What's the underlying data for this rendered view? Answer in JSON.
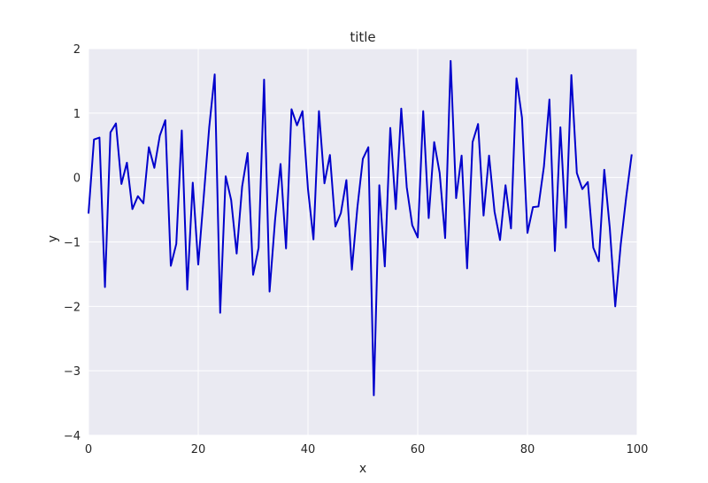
{
  "chart_data": {
    "type": "line",
    "title": "title",
    "xlabel": "x",
    "ylabel": "y",
    "xlim": [
      0,
      100
    ],
    "ylim": [
      -4,
      2
    ],
    "xticks": [
      0,
      20,
      40,
      60,
      80,
      100
    ],
    "yticks": [
      -4,
      -3,
      -2,
      -1,
      0,
      1,
      2
    ],
    "xtick_labels": [
      "0",
      "20",
      "40",
      "60",
      "80",
      "100"
    ],
    "ytick_labels": [
      "−4",
      "−3",
      "−2",
      "−1",
      "0",
      "1",
      "2"
    ],
    "grid": true,
    "style": "seaborn-darkgrid",
    "background_color": "#EAEAF2",
    "grid_color": "#FFFFFF",
    "series": [
      {
        "color": "#0000CC",
        "x": [
          0,
          1,
          2,
          3,
          4,
          5,
          6,
          7,
          8,
          9,
          10,
          11,
          12,
          13,
          14,
          15,
          16,
          17,
          18,
          19,
          20,
          21,
          22,
          23,
          24,
          25,
          26,
          27,
          28,
          29,
          30,
          31,
          32,
          33,
          34,
          35,
          36,
          37,
          38,
          39,
          40,
          41,
          42,
          43,
          44,
          45,
          46,
          47,
          48,
          49,
          50,
          51,
          52,
          53,
          54,
          55,
          56,
          57,
          58,
          59,
          60,
          61,
          62,
          63,
          64,
          65,
          66,
          67,
          68,
          69,
          70,
          71,
          72,
          73,
          74,
          75,
          76,
          77,
          78,
          79,
          80,
          81,
          82,
          83,
          84,
          85,
          86,
          87,
          88,
          89,
          90,
          91,
          92,
          93,
          94,
          95,
          96,
          97,
          98,
          99
        ],
        "y": [
          -0.56,
          0.59,
          0.62,
          -1.7,
          0.7,
          0.84,
          -0.1,
          0.23,
          -0.49,
          -0.29,
          -0.4,
          0.47,
          0.15,
          0.65,
          0.89,
          -1.37,
          -1.03,
          0.73,
          -1.74,
          -0.08,
          -1.35,
          -0.3,
          0.78,
          1.6,
          -2.1,
          0.02,
          -0.35,
          -1.18,
          -0.14,
          0.38,
          -1.51,
          -1.09,
          1.52,
          -1.77,
          -0.66,
          0.21,
          -1.1,
          1.06,
          0.81,
          1.03,
          -0.18,
          -0.96,
          1.03,
          -0.09,
          0.35,
          -0.76,
          -0.55,
          -0.04,
          -1.43,
          -0.47,
          0.29,
          0.47,
          -3.38,
          -0.12,
          -1.38,
          0.77,
          -0.49,
          1.07,
          -0.15,
          -0.74,
          -0.93,
          1.03,
          -0.63,
          0.55,
          0.07,
          -0.94,
          1.81,
          -0.32,
          0.34,
          -1.41,
          0.55,
          0.83,
          -0.59,
          0.34,
          -0.53,
          -0.97,
          -0.12,
          -0.79,
          1.54,
          0.93,
          -0.86,
          -0.46,
          -0.45,
          0.17,
          1.21,
          -1.14,
          0.78,
          -0.78,
          1.59,
          0.07,
          -0.18,
          -0.07,
          -1.09,
          -1.3,
          0.12,
          -0.78,
          -2.0,
          -1.04,
          -0.3,
          0.36
        ]
      }
    ]
  }
}
